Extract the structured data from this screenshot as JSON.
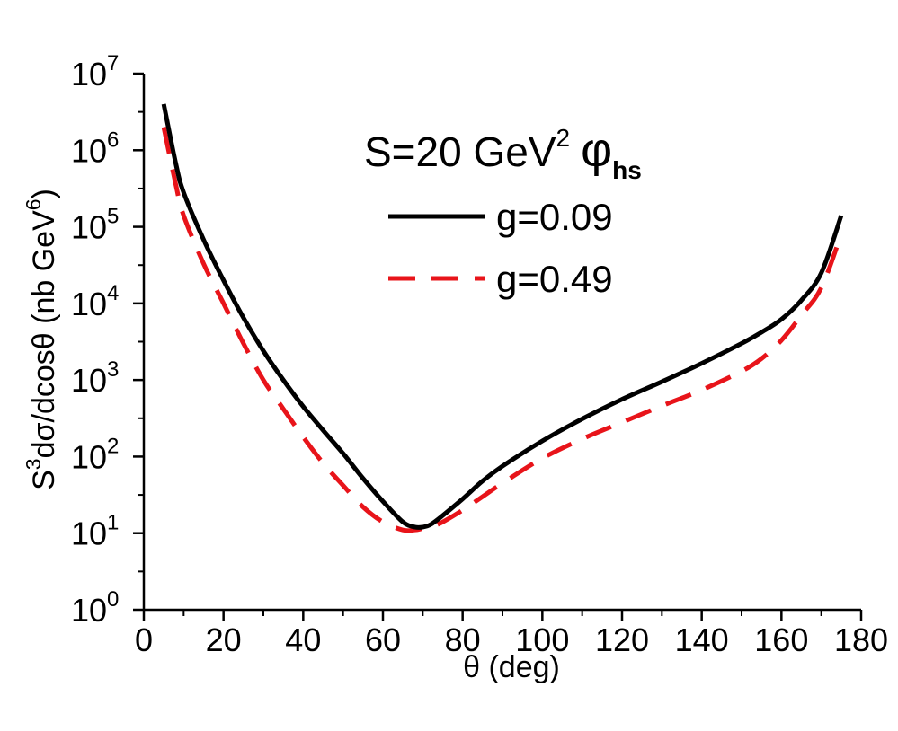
{
  "chart_data": {
    "type": "line",
    "title": "S=20 GeV",
    "title_sup": "2",
    "title_symbol": "φ",
    "title_symbol_sub": "hs",
    "xlabel": "θ (deg)",
    "ylabel_parts": {
      "s": "S",
      "s_sup": "3",
      "main": "dσ/dcosθ (nb GeV",
      "unit_sup": "6",
      "close": ")"
    },
    "xlim": [
      0,
      180
    ],
    "ylim_exp": [
      0,
      7
    ],
    "y_scale": "log",
    "x_ticks": [
      0,
      20,
      40,
      60,
      80,
      100,
      120,
      140,
      160,
      180
    ],
    "x_tick_labels": [
      "0",
      "20",
      "40",
      "60",
      "80",
      "100",
      "120",
      "140",
      "160",
      "180"
    ],
    "y_ticks_exp": [
      0,
      1,
      2,
      3,
      4,
      5,
      6,
      7
    ],
    "y_tick_base": "10",
    "y_tick_exponents": [
      "0",
      "1",
      "2",
      "3",
      "4",
      "5",
      "6",
      "7"
    ],
    "grid": false,
    "legend_position": "top-right",
    "series": [
      {
        "name": "g=0.09",
        "color": "#000000",
        "style": "solid",
        "x": [
          5,
          8,
          10,
          15,
          20,
          25,
          30,
          35,
          40,
          45,
          50,
          55,
          60,
          65,
          68,
          70,
          72,
          75,
          80,
          85,
          90,
          100,
          110,
          120,
          130,
          140,
          150,
          155,
          160,
          165,
          170,
          175
        ],
        "y": [
          4000000,
          680000,
          280000,
          68000,
          20000,
          6500,
          2400,
          1000,
          450,
          220,
          110,
          52,
          26,
          14,
          12,
          12,
          13,
          17,
          28,
          48,
          75,
          160,
          310,
          560,
          950,
          1650,
          3000,
          4200,
          6200,
          11000,
          25000,
          140000
        ]
      },
      {
        "name": "g=0.49",
        "color": "#e8141a",
        "style": "dashed",
        "x": [
          5,
          8,
          10,
          15,
          20,
          25,
          30,
          35,
          40,
          45,
          50,
          55,
          60,
          65,
          68,
          70,
          72,
          75,
          80,
          85,
          90,
          100,
          110,
          120,
          130,
          140,
          150,
          155,
          160,
          165,
          170,
          175
        ],
        "y": [
          2000000,
          360000,
          140000,
          33000,
          10000,
          3000,
          1000,
          420,
          180,
          82,
          42,
          22,
          14,
          11,
          11,
          11.5,
          12,
          14,
          20,
          30,
          45,
          95,
          170,
          280,
          460,
          740,
          1300,
          1900,
          3300,
          7000,
          16000,
          80000
        ]
      }
    ]
  }
}
